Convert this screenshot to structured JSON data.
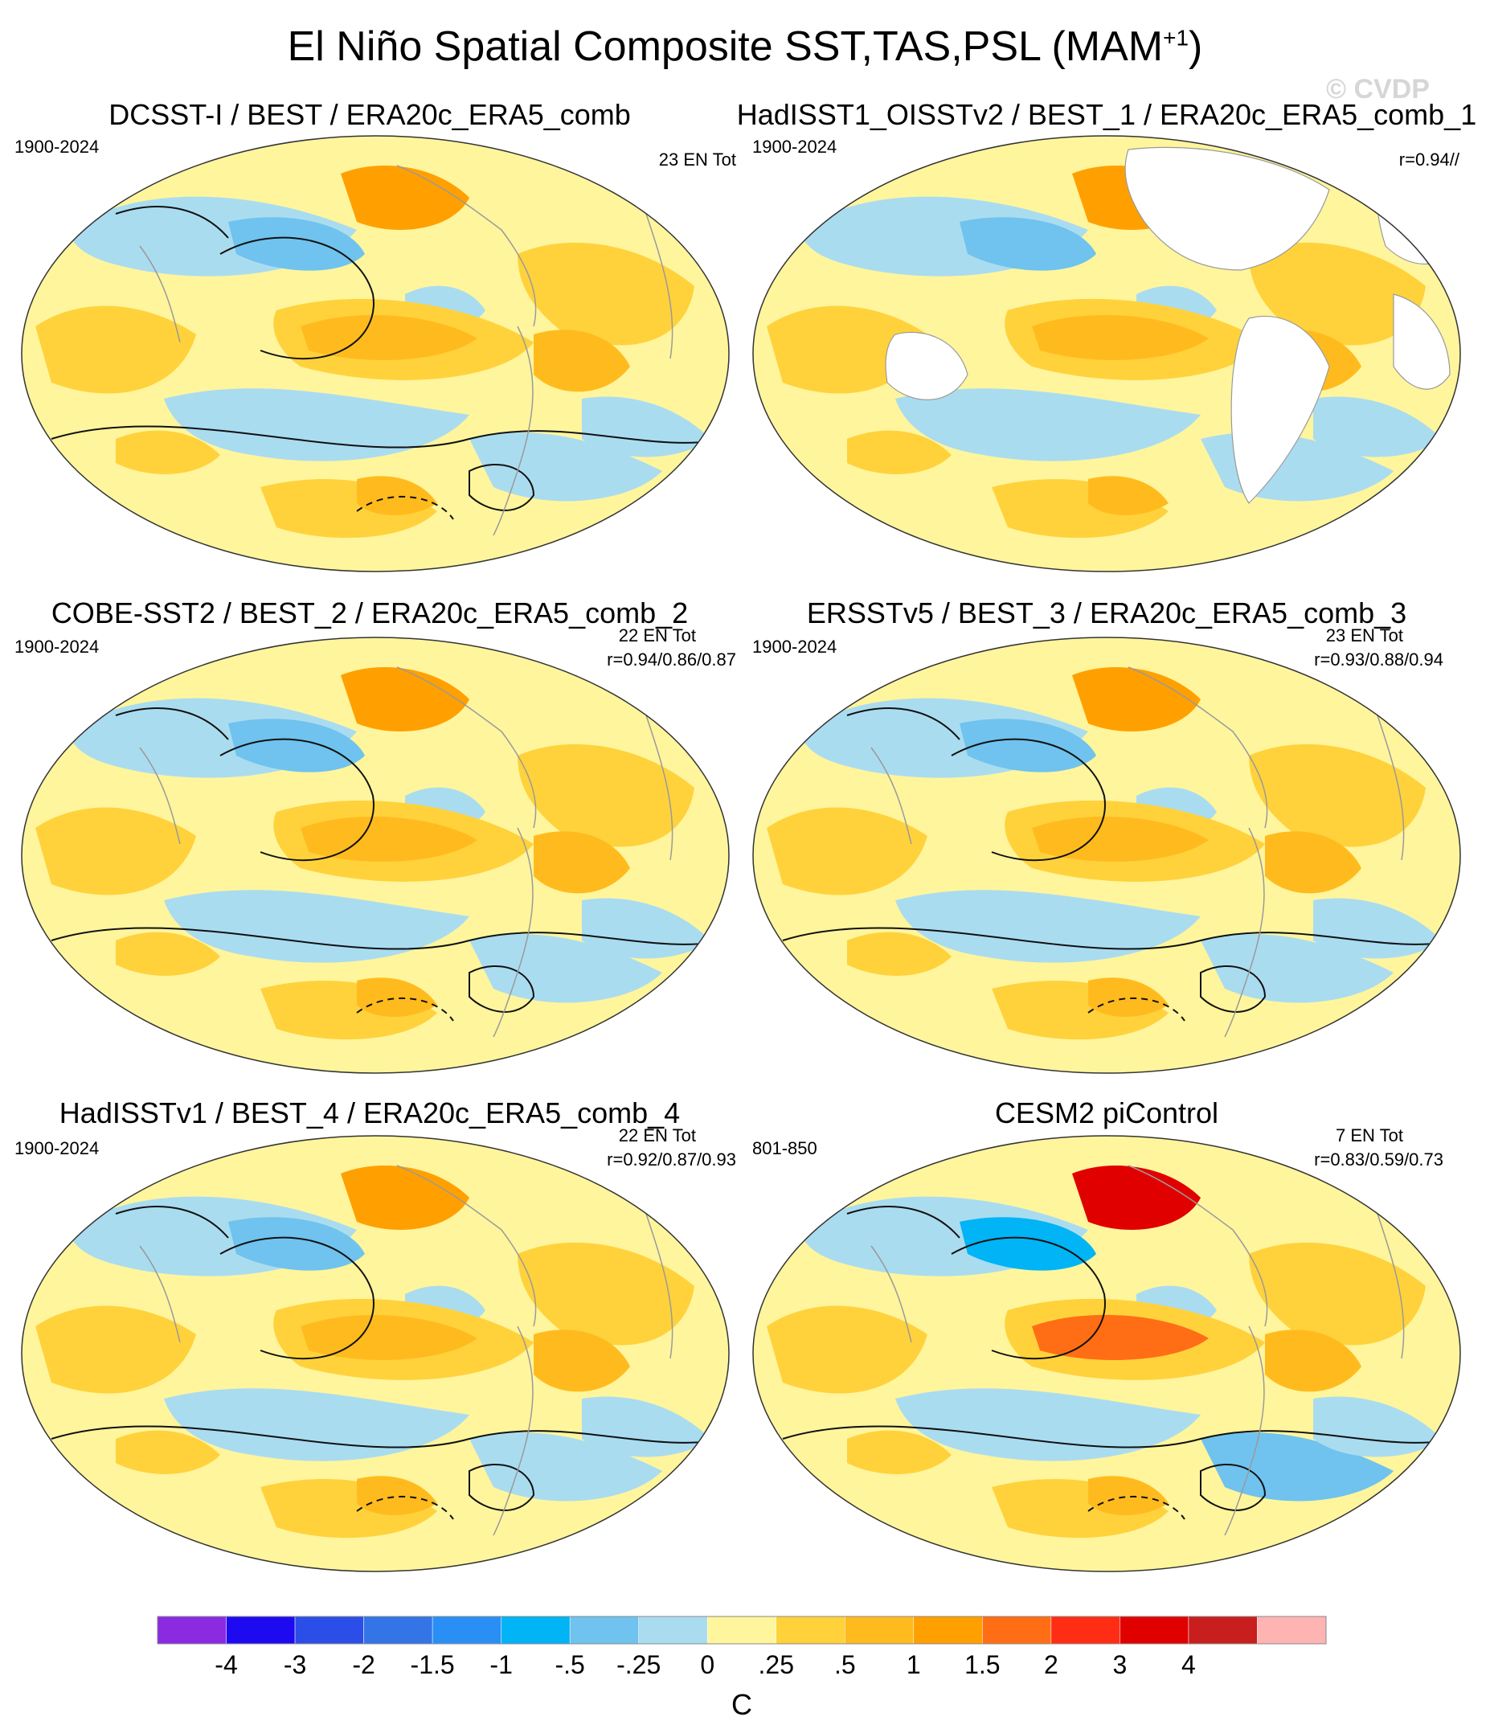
{
  "title": {
    "main": "El Niño Spatial Composite SST,TAS,PSL (MAM",
    "sup": "+1",
    "close": ")"
  },
  "watermark": "© CVDP",
  "panels": [
    {
      "title": "DCSST-I / BEST / ERA20c_ERA5_comb",
      "period": "1900-2024",
      "count": "23 EN Tot",
      "corr": "",
      "land_masked": false
    },
    {
      "title": "HadISST1_OISSTv2 / BEST_1 / ERA20c_ERA5_comb_1",
      "period": "1900-2024",
      "count": "",
      "corr": "r=0.94//",
      "land_masked": true
    },
    {
      "title": "COBE-SST2 / BEST_2 / ERA20c_ERA5_comb_2",
      "period": "1900-2024",
      "count": "22 EN Tot",
      "corr": "r=0.94/0.86/0.87",
      "land_masked": false
    },
    {
      "title": "ERSSTv5 / BEST_3 / ERA20c_ERA5_comb_3",
      "period": "1900-2024",
      "count": "23 EN Tot",
      "corr": "r=0.93/0.88/0.94",
      "land_masked": false
    },
    {
      "title": "HadISSTv1 / BEST_4 / ERA20c_ERA5_comb_4",
      "period": "1900-2024",
      "count": "22 EN Tot",
      "corr": "r=0.92/0.87/0.93",
      "land_masked": false
    },
    {
      "title": "CESM2 piControl",
      "period": "801-850",
      "count": "7 EN Tot",
      "corr": "r=0.83/0.59/0.73",
      "land_masked": false
    }
  ],
  "colorbar": {
    "colors": [
      "#8a2be2",
      "#1e0af0",
      "#2b4ee8",
      "#3375e6",
      "#2a8ff5",
      "#00b4f5",
      "#6fc3ee",
      "#aadcf0",
      "#fff59d",
      "#ffd23c",
      "#ffbb1e",
      "#ffa000",
      "#ff6e14",
      "#ff2d14",
      "#e10000",
      "#c81e1e",
      "#ffb4b4"
    ],
    "labels": [
      "-4",
      "-3",
      "-2",
      "-1.5",
      "-1",
      "-.5",
      "-.25",
      "0",
      ".25",
      ".5",
      "1",
      "1.5",
      "2",
      "3",
      "4"
    ],
    "unit": "C"
  },
  "palette": {
    "pale_yellow": "#fff59d",
    "yellow": "#ffd23c",
    "orange": "#ffbb1e",
    "dark_orange": "#ffa000",
    "red_orange": "#ff6e14",
    "red": "#e10000",
    "pale_blue": "#aadcf0",
    "light_blue": "#6fc3ee",
    "blue": "#00b4f5",
    "mid_blue": "#2a8ff5",
    "deep_blue": "#3375e6"
  }
}
